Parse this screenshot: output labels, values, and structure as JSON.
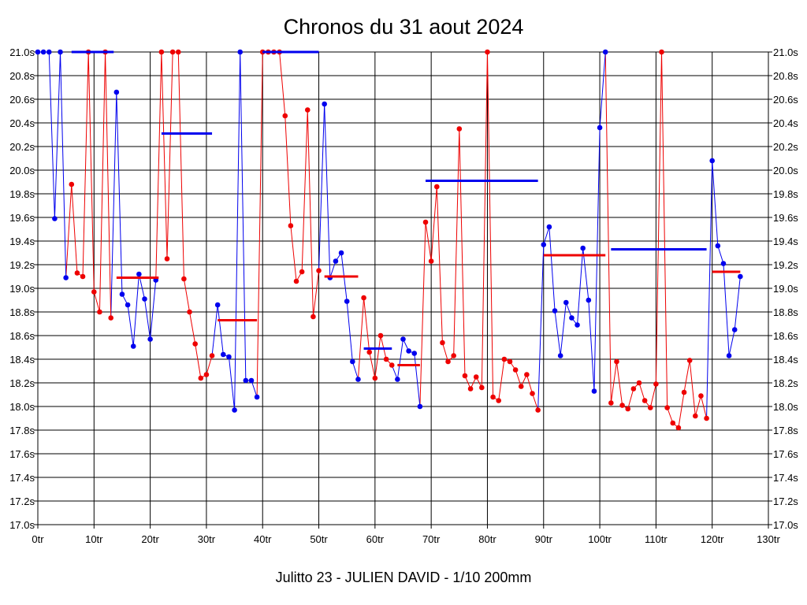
{
  "chart_data": {
    "type": "line",
    "title": "Chronos du 31 aout 2024",
    "subtitle": "Julitto 23 - JULIEN DAVID - 1/10 200mm",
    "xlabel": "",
    "ylabel": "",
    "xlim": [
      0,
      130
    ],
    "ylim": [
      17.0,
      21.0
    ],
    "grid": true,
    "x_ticks": [
      "0tr",
      "10tr",
      "20tr",
      "30tr",
      "40tr",
      "50tr",
      "60tr",
      "70tr",
      "80tr",
      "90tr",
      "100tr",
      "110tr",
      "120tr",
      "130tr"
    ],
    "y_ticks": [
      "17.0s",
      "17.2s",
      "17.4s",
      "17.6s",
      "17.8s",
      "18.0s",
      "18.2s",
      "18.4s",
      "18.6s",
      "18.8s",
      "19.0s",
      "19.2s",
      "19.4s",
      "19.6s",
      "19.8s",
      "20.0s",
      "20.2s",
      "20.4s",
      "20.6s",
      "20.8s",
      "21.0s"
    ],
    "colors": {
      "blue": "#0000ee",
      "red": "#ee0000"
    },
    "segments": [
      {
        "color": "blue",
        "x": [
          0,
          1,
          2,
          3,
          4,
          5
        ],
        "y": [
          21.0,
          21.0,
          21.0,
          19.59,
          21.0,
          19.09
        ]
      },
      {
        "color": "red",
        "x": [
          6,
          7,
          8,
          9,
          10,
          11,
          12,
          13
        ],
        "y": [
          19.88,
          19.13,
          19.1,
          21.0,
          18.97,
          18.8,
          21.0,
          18.75
        ]
      },
      {
        "color": "blue",
        "x": [
          14,
          15,
          16,
          17,
          18,
          19,
          20,
          21
        ],
        "y": [
          20.66,
          18.95,
          18.86,
          18.51,
          19.12,
          18.91,
          18.57,
          19.07
        ]
      },
      {
        "color": "red",
        "x": [
          22,
          23,
          24,
          25,
          26,
          27,
          28,
          29,
          30,
          31
        ],
        "y": [
          21.0,
          19.25,
          21.0,
          21.0,
          19.08,
          18.8,
          18.53,
          18.24,
          18.27,
          18.43
        ]
      },
      {
        "color": "blue",
        "x": [
          32,
          33,
          34,
          35,
          36,
          37,
          38,
          39
        ],
        "y": [
          18.86,
          18.44,
          18.42,
          17.97,
          21.0,
          18.22,
          18.22,
          18.08
        ]
      },
      {
        "color": "red",
        "x": [
          40,
          41,
          42,
          43,
          44,
          45,
          46,
          47,
          48,
          49,
          50
        ],
        "y": [
          21.0,
          21.0,
          21.0,
          21.0,
          20.46,
          19.53,
          19.06,
          19.14,
          20.51,
          18.76,
          19.15
        ]
      },
      {
        "color": "blue",
        "x": [
          51,
          52,
          53,
          54,
          55,
          56,
          57
        ],
        "y": [
          20.56,
          19.09,
          19.23,
          19.3,
          18.89,
          18.38,
          18.23
        ]
      },
      {
        "color": "red",
        "x": [
          58,
          59,
          60,
          61,
          62,
          63
        ],
        "y": [
          18.92,
          18.46,
          18.24,
          18.6,
          18.4,
          18.35
        ]
      },
      {
        "color": "blue",
        "x": [
          64,
          65,
          66,
          67,
          68
        ],
        "y": [
          18.23,
          18.57,
          18.47,
          18.45,
          18.0
        ]
      },
      {
        "color": "red",
        "x": [
          69,
          70,
          71,
          72,
          73,
          74,
          75,
          76,
          77,
          78,
          79,
          80,
          81,
          82,
          83,
          84,
          85,
          86,
          87,
          88,
          89
        ],
        "y": [
          19.56,
          19.23,
          19.86,
          18.54,
          18.38,
          18.43,
          20.35,
          18.26,
          18.15,
          18.25,
          18.16,
          21.0,
          18.08,
          18.05,
          18.4,
          18.38,
          18.31,
          18.17,
          18.27,
          18.11,
          17.97
        ]
      },
      {
        "color": "blue",
        "x": [
          90,
          91,
          92,
          93,
          94,
          95,
          96,
          97,
          98,
          99,
          100,
          101
        ],
        "y": [
          19.37,
          19.52,
          18.81,
          18.43,
          18.88,
          18.75,
          18.69,
          19.34,
          18.9,
          18.13,
          20.36,
          21.0
        ]
      },
      {
        "color": "red",
        "x": [
          102,
          103,
          104,
          105,
          106,
          107,
          108,
          109,
          110,
          111,
          112,
          113,
          114,
          115,
          116,
          117,
          118,
          119
        ],
        "y": [
          18.03,
          18.38,
          18.01,
          17.98,
          18.15,
          18.2,
          18.05,
          17.99,
          18.19,
          21.0,
          17.99,
          17.86,
          17.82,
          18.12,
          18.39,
          17.92,
          18.09,
          17.9
        ]
      },
      {
        "color": "blue",
        "x": [
          120,
          121,
          122,
          123,
          124,
          125
        ],
        "y": [
          20.08,
          19.36,
          19.21,
          18.43,
          18.65,
          19.1
        ]
      }
    ],
    "averages": [
      {
        "color": "blue",
        "x": [
          6,
          13.5
        ],
        "y": 21.0
      },
      {
        "color": "red",
        "x": [
          14,
          21.5
        ],
        "y": 19.09
      },
      {
        "color": "blue",
        "x": [
          22,
          31
        ],
        "y": 20.31
      },
      {
        "color": "red",
        "x": [
          32,
          39
        ],
        "y": 18.73
      },
      {
        "color": "blue",
        "x": [
          40,
          50
        ],
        "y": 21.0
      },
      {
        "color": "red",
        "x": [
          51,
          57
        ],
        "y": 19.1
      },
      {
        "color": "blue",
        "x": [
          58,
          63
        ],
        "y": 18.49
      },
      {
        "color": "red",
        "x": [
          64,
          68
        ],
        "y": 18.35
      },
      {
        "color": "blue",
        "x": [
          69,
          89
        ],
        "y": 19.91
      },
      {
        "color": "red",
        "x": [
          90,
          101
        ],
        "y": 19.28
      },
      {
        "color": "blue",
        "x": [
          102,
          119
        ],
        "y": 19.33
      },
      {
        "color": "red",
        "x": [
          120,
          125
        ],
        "y": 19.14
      }
    ]
  }
}
